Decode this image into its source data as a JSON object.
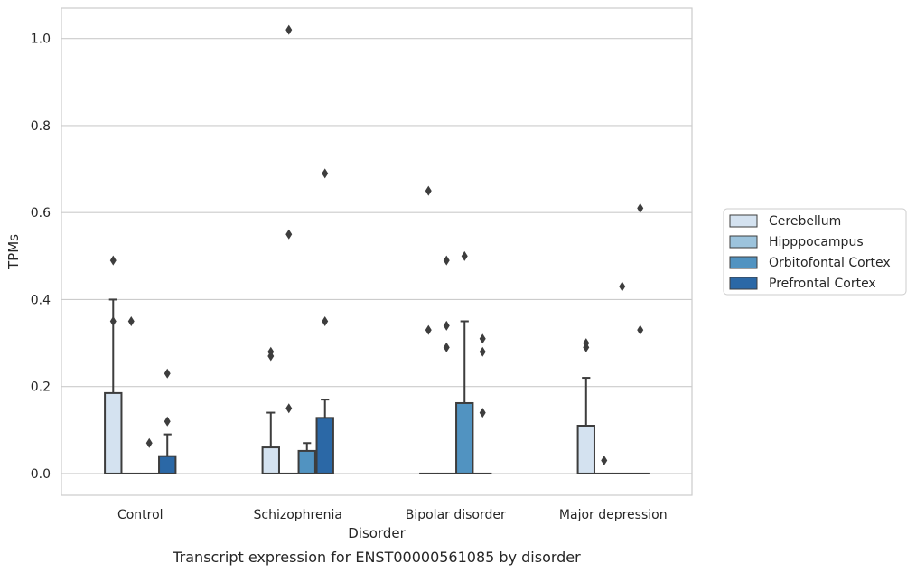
{
  "chart_data": {
    "type": "box",
    "title": "",
    "caption": "Transcript expression for ENST00000561085 by disorder",
    "xlabel": "Disorder",
    "ylabel": "TPMs",
    "ylim": [
      -0.05,
      1.07
    ],
    "yticks": [
      "0.0",
      "0.2",
      "0.4",
      "0.6",
      "0.8",
      "1.0"
    ],
    "grid": "horizontal",
    "legend_position": "right",
    "categories": [
      "Control",
      "Schizophrenia",
      "Bipolar disorder",
      "Major depression"
    ],
    "series": [
      {
        "name": "Cerebellum",
        "color": "#d4e2f0",
        "boxes": [
          {
            "q1": 0,
            "median": 0,
            "q3": 0.185,
            "whisker_low": 0,
            "whisker_high": 0.4,
            "outliers": [
              0.49,
              0.35
            ]
          },
          {
            "q1": 0,
            "median": 0,
            "q3": 0.06,
            "whisker_low": 0,
            "whisker_high": 0.14,
            "outliers": [
              0.27,
              0.28
            ]
          },
          {
            "q1": 0,
            "median": 0,
            "q3": 0,
            "whisker_low": 0,
            "whisker_high": 0,
            "outliers": [
              0.65,
              0.33
            ]
          },
          {
            "q1": 0,
            "median": 0,
            "q3": 0.11,
            "whisker_low": 0,
            "whisker_high": 0.22,
            "outliers": [
              0.29,
              0.3
            ]
          }
        ]
      },
      {
        "name": "Hipppocampus",
        "color": "#9cc3dc",
        "boxes": [
          {
            "q1": 0,
            "median": 0,
            "q3": 0,
            "whisker_low": 0,
            "whisker_high": 0,
            "outliers": [
              0.35
            ]
          },
          {
            "q1": 0,
            "median": 0,
            "q3": 0,
            "whisker_low": 0,
            "whisker_high": 0,
            "outliers": [
              1.02,
              0.55,
              0.15
            ]
          },
          {
            "q1": 0,
            "median": 0,
            "q3": 0,
            "whisker_low": 0,
            "whisker_high": 0,
            "outliers": [
              0.49,
              0.34,
              0.29
            ]
          },
          {
            "q1": 0,
            "median": 0,
            "q3": 0,
            "whisker_low": 0,
            "whisker_high": 0,
            "outliers": [
              0.03
            ]
          }
        ]
      },
      {
        "name": "Orbitofontal Cortex",
        "color": "#5193c1",
        "boxes": [
          {
            "q1": 0,
            "median": 0,
            "q3": 0,
            "whisker_low": 0,
            "whisker_high": 0,
            "outliers": [
              0.07
            ]
          },
          {
            "q1": 0,
            "median": 0,
            "q3": 0.052,
            "whisker_low": 0,
            "whisker_high": 0.07,
            "outliers": []
          },
          {
            "q1": 0,
            "median": 0,
            "q3": 0.162,
            "whisker_low": 0,
            "whisker_high": 0.35,
            "outliers": [
              0.5
            ]
          },
          {
            "q1": 0,
            "median": 0,
            "q3": 0,
            "whisker_low": 0,
            "whisker_high": 0,
            "outliers": [
              0.43
            ]
          }
        ]
      },
      {
        "name": "Prefrontal Cortex",
        "color": "#2b68a6",
        "boxes": [
          {
            "q1": 0,
            "median": 0,
            "q3": 0.04,
            "whisker_low": 0,
            "whisker_high": 0.09,
            "outliers": [
              0.23,
              0.12
            ]
          },
          {
            "q1": 0,
            "median": 0,
            "q3": 0.128,
            "whisker_low": 0,
            "whisker_high": 0.17,
            "outliers": [
              0.69,
              0.35
            ]
          },
          {
            "q1": 0,
            "median": 0,
            "q3": 0,
            "whisker_low": 0,
            "whisker_high": 0,
            "outliers": [
              0.31,
              0.28,
              0.14
            ]
          },
          {
            "q1": 0,
            "median": 0,
            "q3": 0,
            "whisker_low": 0,
            "whisker_high": 0,
            "outliers": [
              0.61,
              0.33
            ]
          }
        ]
      }
    ]
  }
}
